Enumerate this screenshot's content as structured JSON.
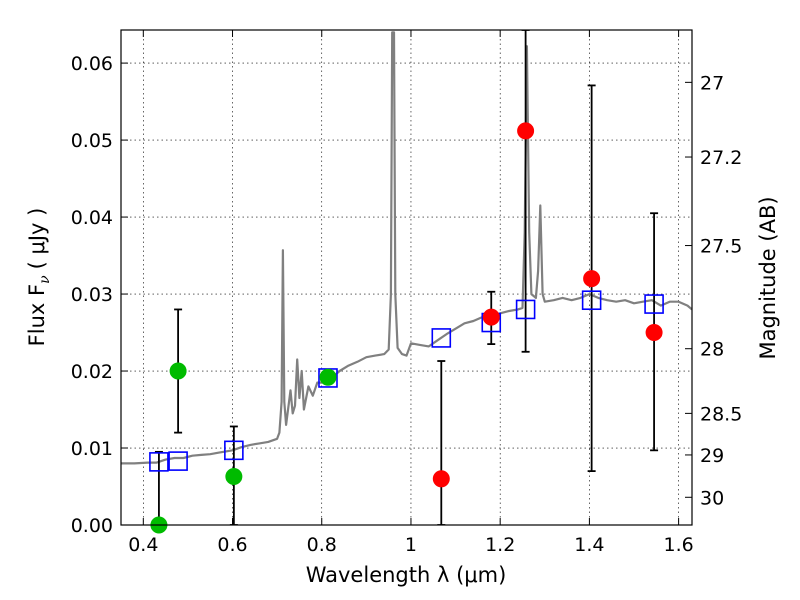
{
  "chart_data": {
    "type": "scatter",
    "xlabel": "Wavelength  λ (μm)",
    "ylabel_left": "Flux  F",
    "ylabel_left_sub": "ν",
    "ylabel_left_unit": "( μJy )",
    "ylabel_right": "Magnitude (AB)",
    "xlim": [
      0.35,
      1.63
    ],
    "ylim": [
      0.0,
      0.0643
    ],
    "grid": true,
    "x_ticks": [
      0.4,
      0.6,
      0.8,
      1.0,
      1.2,
      1.4,
      1.6
    ],
    "x_tick_labels": [
      "0.4",
      "0.6",
      "0.8",
      "1",
      "1.2",
      "1.4",
      "1.6"
    ],
    "y_ticks": [
      0.0,
      0.01,
      0.02,
      0.03,
      0.04,
      0.05,
      0.06
    ],
    "y_tick_labels": [
      "0.00",
      "0.01",
      "0.02",
      "0.03",
      "0.04",
      "0.05",
      "0.06"
    ],
    "right_ticks": [
      {
        "label": "27",
        "flux": 0.0575
      },
      {
        "label": "27.2",
        "flux": 0.0478
      },
      {
        "label": "27.5",
        "flux": 0.0363
      },
      {
        "label": "28",
        "flux": 0.0229
      },
      {
        "label": "28.5",
        "flux": 0.0145
      },
      {
        "label": "29",
        "flux": 0.0091
      },
      {
        "label": "30",
        "flux": 0.0036
      }
    ],
    "colors": {
      "spectrum": "#808080",
      "model_square": "#0000ff",
      "green_point": "#00bb00",
      "red_point": "#ff0000",
      "errorbar": "#000000"
    },
    "spectrum": [
      [
        0.35,
        0.008
      ],
      [
        0.38,
        0.008
      ],
      [
        0.41,
        0.0081
      ],
      [
        0.43,
        0.0081
      ],
      [
        0.45,
        0.0085
      ],
      [
        0.47,
        0.0087
      ],
      [
        0.49,
        0.0087
      ],
      [
        0.51,
        0.009
      ],
      [
        0.53,
        0.0091
      ],
      [
        0.55,
        0.0092
      ],
      [
        0.57,
        0.0094
      ],
      [
        0.59,
        0.0096
      ],
      [
        0.6,
        0.0097
      ],
      [
        0.62,
        0.0101
      ],
      [
        0.64,
        0.0104
      ],
      [
        0.66,
        0.0106
      ],
      [
        0.68,
        0.0108
      ],
      [
        0.7,
        0.0112
      ],
      [
        0.705,
        0.012
      ],
      [
        0.71,
        0.016
      ],
      [
        0.713,
        0.0357
      ],
      [
        0.716,
        0.016
      ],
      [
        0.72,
        0.013
      ],
      [
        0.73,
        0.0175
      ],
      [
        0.735,
        0.0145
      ],
      [
        0.74,
        0.0155
      ],
      [
        0.745,
        0.0215
      ],
      [
        0.75,
        0.0165
      ],
      [
        0.755,
        0.02
      ],
      [
        0.76,
        0.015
      ],
      [
        0.77,
        0.018
      ],
      [
        0.78,
        0.0168
      ],
      [
        0.79,
        0.0185
      ],
      [
        0.8,
        0.0185
      ],
      [
        0.81,
        0.0188
      ],
      [
        0.82,
        0.019
      ],
      [
        0.84,
        0.02
      ],
      [
        0.86,
        0.0207
      ],
      [
        0.88,
        0.0212
      ],
      [
        0.9,
        0.0218
      ],
      [
        0.92,
        0.022
      ],
      [
        0.94,
        0.0222
      ],
      [
        0.95,
        0.0228
      ],
      [
        0.955,
        0.03
      ],
      [
        0.958,
        0.064
      ],
      [
        0.962,
        0.064
      ],
      [
        0.965,
        0.03
      ],
      [
        0.97,
        0.023
      ],
      [
        0.98,
        0.0222
      ],
      [
        0.99,
        0.022
      ],
      [
        1.0,
        0.0236
      ],
      [
        1.02,
        0.0234
      ],
      [
        1.04,
        0.0232
      ],
      [
        1.06,
        0.024
      ],
      [
        1.08,
        0.0248
      ],
      [
        1.1,
        0.0255
      ],
      [
        1.12,
        0.0262
      ],
      [
        1.14,
        0.0265
      ],
      [
        1.16,
        0.027
      ],
      [
        1.18,
        0.027
      ],
      [
        1.2,
        0.0275
      ],
      [
        1.22,
        0.0278
      ],
      [
        1.24,
        0.028
      ],
      [
        1.25,
        0.0282
      ],
      [
        1.255,
        0.038
      ],
      [
        1.26,
        0.0622
      ],
      [
        1.265,
        0.038
      ],
      [
        1.27,
        0.03
      ],
      [
        1.28,
        0.0295
      ],
      [
        1.285,
        0.033
      ],
      [
        1.29,
        0.0415
      ],
      [
        1.295,
        0.03
      ],
      [
        1.3,
        0.029
      ],
      [
        1.32,
        0.0292
      ],
      [
        1.34,
        0.0295
      ],
      [
        1.36,
        0.0292
      ],
      [
        1.38,
        0.0295
      ],
      [
        1.4,
        0.03
      ],
      [
        1.42,
        0.0295
      ],
      [
        1.44,
        0.0292
      ],
      [
        1.46,
        0.029
      ],
      [
        1.48,
        0.0292
      ],
      [
        1.5,
        0.0288
      ],
      [
        1.52,
        0.029
      ],
      [
        1.54,
        0.0292
      ],
      [
        1.56,
        0.0285
      ],
      [
        1.58,
        0.029
      ],
      [
        1.6,
        0.029
      ],
      [
        1.62,
        0.0285
      ],
      [
        1.63,
        0.028
      ]
    ],
    "model_points": [
      {
        "x": 0.435,
        "y": 0.0082
      },
      {
        "x": 0.478,
        "y": 0.0083
      },
      {
        "x": 0.603,
        "y": 0.0097
      },
      {
        "x": 0.814,
        "y": 0.0191
      },
      {
        "x": 1.068,
        "y": 0.0243
      },
      {
        "x": 1.18,
        "y": 0.0263
      },
      {
        "x": 1.257,
        "y": 0.028
      },
      {
        "x": 1.405,
        "y": 0.0292
      },
      {
        "x": 1.545,
        "y": 0.0287
      }
    ],
    "observed_green": [
      {
        "x": 0.435,
        "y": 0.0,
        "yerr_low": 0.0,
        "yerr_high": 0.0095
      },
      {
        "x": 0.478,
        "y": 0.02,
        "yerr_low": 0.012,
        "yerr_high": 0.028
      },
      {
        "x": 0.603,
        "y": 0.0063,
        "yerr_low": 0.0,
        "yerr_high": 0.0128
      },
      {
        "x": 0.814,
        "y": 0.0192,
        "yerr_low": 0.0192,
        "yerr_high": 0.0192
      }
    ],
    "observed_red": [
      {
        "x": 1.068,
        "y": 0.006,
        "yerr_low": 0.0,
        "yerr_high": 0.0213
      },
      {
        "x": 1.18,
        "y": 0.027,
        "yerr_low": 0.0235,
        "yerr_high": 0.0303
      },
      {
        "x": 1.257,
        "y": 0.0512,
        "yerr_low": 0.0225,
        "yerr_high": 0.0643
      },
      {
        "x": 1.405,
        "y": 0.032,
        "yerr_low": 0.007,
        "yerr_high": 0.0571
      },
      {
        "x": 1.545,
        "y": 0.025,
        "yerr_low": 0.0097,
        "yerr_high": 0.0405
      }
    ]
  }
}
